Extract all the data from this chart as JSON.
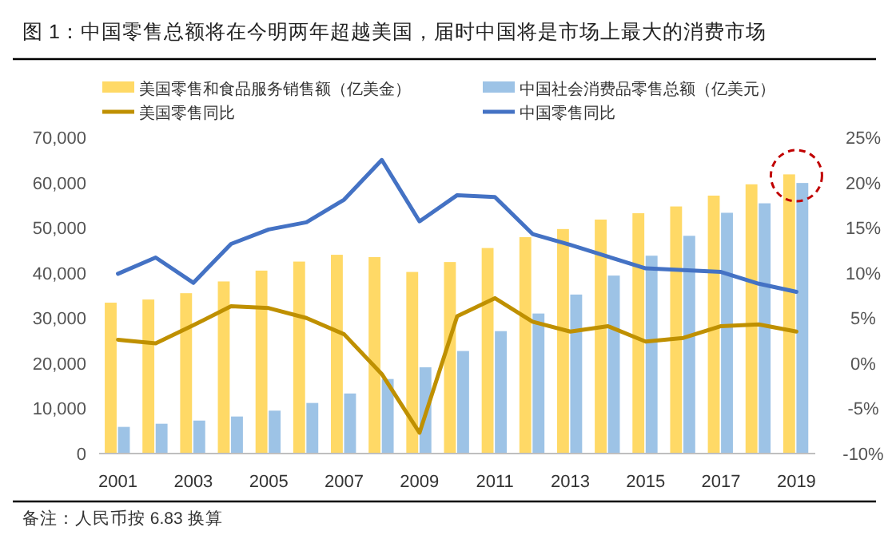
{
  "chart_data": {
    "type": "bar",
    "title": "图 1：中国零售总额将在今明两年超越美国，届时中国将是市场上最大的消费市场",
    "categories": [
      "2001",
      null,
      "2003",
      null,
      "2005",
      null,
      "2007",
      null,
      "2009",
      null,
      "2011",
      null,
      "2013",
      null,
      "2015",
      null,
      "2017",
      null,
      "2019"
    ],
    "series": [
      {
        "name": "美国零售和食品服务销售额（亿美金）",
        "color": "#ffd966",
        "values": [
          33400,
          34100,
          35500,
          38100,
          40500,
          42500,
          44000,
          43500,
          40200,
          42400,
          45500,
          47900,
          49700,
          51800,
          53200,
          54700,
          57100,
          59600,
          61800
        ]
      },
      {
        "name": "中国社会消费品零售总额（亿美元）",
        "color": "#9dc3e6",
        "values": [
          5900,
          6600,
          7300,
          8200,
          9500,
          11200,
          13300,
          16500,
          19100,
          22700,
          27100,
          31000,
          35200,
          39400,
          43800,
          48200,
          53300,
          55400,
          59900
        ]
      },
      {
        "name": "美国零售同比",
        "type": "line",
        "axis": "y2",
        "color": "#bf9000",
        "values": [
          2.6,
          2.2,
          4.2,
          6.3,
          6.1,
          5.0,
          3.2,
          -1.2,
          -7.7,
          5.2,
          7.2,
          4.6,
          3.5,
          4.1,
          2.4,
          2.8,
          4.1,
          4.3,
          3.5
        ]
      },
      {
        "name": "中国零售同比",
        "type": "line",
        "axis": "y2",
        "color": "#4472c4",
        "values": [
          9.9,
          11.7,
          8.9,
          13.2,
          14.8,
          15.6,
          18.1,
          22.5,
          15.7,
          18.6,
          18.4,
          14.3,
          13.1,
          11.8,
          10.5,
          10.3,
          10.1,
          8.8,
          7.9
        ]
      }
    ],
    "ylim": [
      0,
      70000
    ],
    "yticks": [
      0,
      {
        "value": 10000,
        "label": "10,000"
      },
      {
        "value": 20000,
        "label": "20,000"
      },
      {
        "value": 30000,
        "label": "30,000"
      },
      {
        "value": 40000,
        "label": "40,000"
      },
      {
        "value": 50000,
        "label": "50,000"
      },
      {
        "value": 60000,
        "label": "60,000"
      },
      {
        "value": 70000,
        "label": "70,000"
      }
    ],
    "y2lim": [
      -10,
      25
    ],
    "y2ticks": [
      {
        "value": -10,
        "label": "-10%"
      },
      {
        "value": -5,
        "label": "-5%"
      },
      {
        "value": 0,
        "label": "0%"
      },
      {
        "value": 5,
        "label": "5%"
      },
      {
        "value": 10,
        "label": "10%"
      },
      {
        "value": 15,
        "label": "15%"
      },
      {
        "value": 20,
        "label": "20%"
      },
      {
        "value": 25,
        "label": "25%"
      }
    ],
    "legend": "top",
    "grid": false,
    "annotations": [
      "备注：人民币按 6.83 换算"
    ]
  }
}
